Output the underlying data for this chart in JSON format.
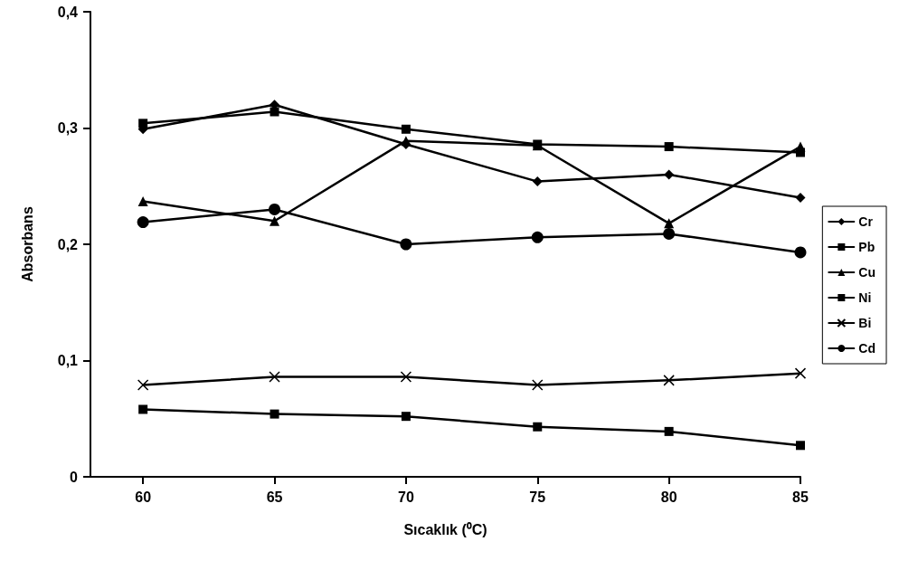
{
  "chart_data": {
    "type": "line",
    "xlabel": "Sıcaklık (⁰C)",
    "ylabel": "Absorbans",
    "x": [
      60,
      65,
      70,
      75,
      80,
      85
    ],
    "xlim": [
      58,
      85
    ],
    "xticks": [
      60,
      65,
      70,
      75,
      80,
      85
    ],
    "ylim": [
      0,
      0.4
    ],
    "yticks": [
      0,
      {
        "value": 0.1,
        "label": "0,1"
      },
      {
        "value": 0.2,
        "label": "0,2"
      },
      {
        "value": 0.3,
        "label": "0,3"
      },
      {
        "value": 0.4,
        "label": "0,4"
      }
    ],
    "grid": false,
    "legend": "right",
    "series": [
      {
        "name": "Cr",
        "color": "#000000",
        "marker": "diamond",
        "values": [
          0.299,
          0.32,
          0.286,
          0.254,
          0.26,
          0.24
        ]
      },
      {
        "name": "Pb",
        "color": "#000000",
        "marker": "square",
        "values": [
          0.304,
          0.314,
          0.299,
          0.286,
          0.284,
          0.279
        ]
      },
      {
        "name": "Cu",
        "color": "#000000",
        "marker": "triangle",
        "values": [
          0.237,
          0.22,
          0.289,
          0.285,
          0.218,
          0.284
        ]
      },
      {
        "name": "Ni",
        "color": "#000000",
        "marker": "square",
        "values": [
          0.058,
          0.054,
          0.052,
          0.043,
          0.039,
          0.027
        ]
      },
      {
        "name": "Bi",
        "color": "#000000",
        "marker": "cross",
        "values": [
          0.079,
          0.086,
          0.086,
          0.079,
          0.083,
          0.089
        ]
      },
      {
        "name": "Cd",
        "color": "#000000",
        "marker": "circle",
        "values": [
          0.219,
          0.23,
          0.2,
          0.206,
          0.209,
          0.193
        ]
      }
    ]
  }
}
